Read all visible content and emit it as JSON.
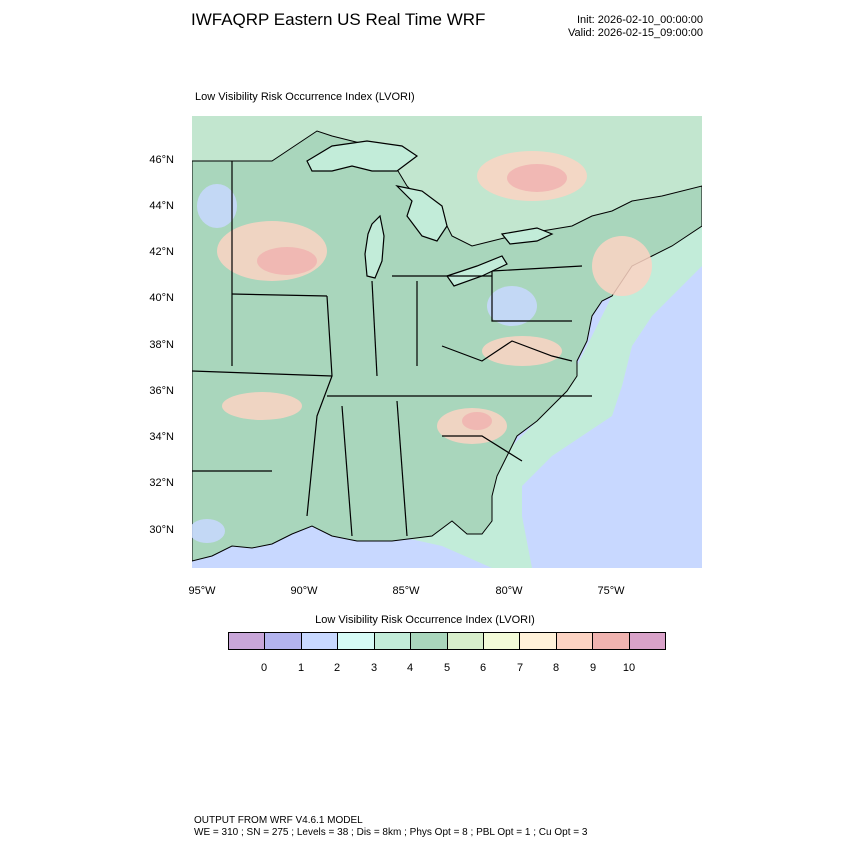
{
  "header": {
    "title": "IWFAQRP Eastern US Real Time WRF",
    "init": "Init: 2026-02-10_00:00:00",
    "valid": "Valid: 2026-02-15_09:00:00"
  },
  "map": {
    "title": "Low Visibility Risk Occurrence Index   (LVORI)",
    "lat_labels": [
      "46°N",
      "44°N",
      "42°N",
      "40°N",
      "38°N",
      "36°N",
      "34°N",
      "32°N",
      "30°N"
    ],
    "lon_labels": [
      "95°W",
      "90°W",
      "85°W",
      "80°W",
      "75°W"
    ]
  },
  "colorbar": {
    "title": "Low Visibility Risk Occurrence Index  (LVORI)",
    "labels": [
      "0",
      "1",
      "2",
      "3",
      "4",
      "5",
      "6",
      "7",
      "8",
      "9",
      "10"
    ],
    "colors": [
      "#c9a6d9",
      "#b3b3ee",
      "#c8d8ff",
      "#d6fbf6",
      "#c2ecd9",
      "#a9d6bc",
      "#d7eecb",
      "#f3fbd8",
      "#fff1d9",
      "#fcd3c3",
      "#f0b3b0",
      "#d9a2c9"
    ]
  },
  "palette": {
    "ocean": "#c8d8ff",
    "coastal": "#c2ecd9",
    "land": "#a9d6bc",
    "canada": "#c2e6cf",
    "high": "#f0b3b0",
    "mid": "#fcd3c3",
    "low": "#c8d8ff"
  },
  "footer": {
    "line1": "OUTPUT FROM WRF V4.6.1 MODEL",
    "line2": "WE = 310 ; SN = 275 ; Levels = 38 ; Dis = 8km ; Phys Opt = 8 ; PBL Opt = 1 ; Cu Opt = 3"
  }
}
